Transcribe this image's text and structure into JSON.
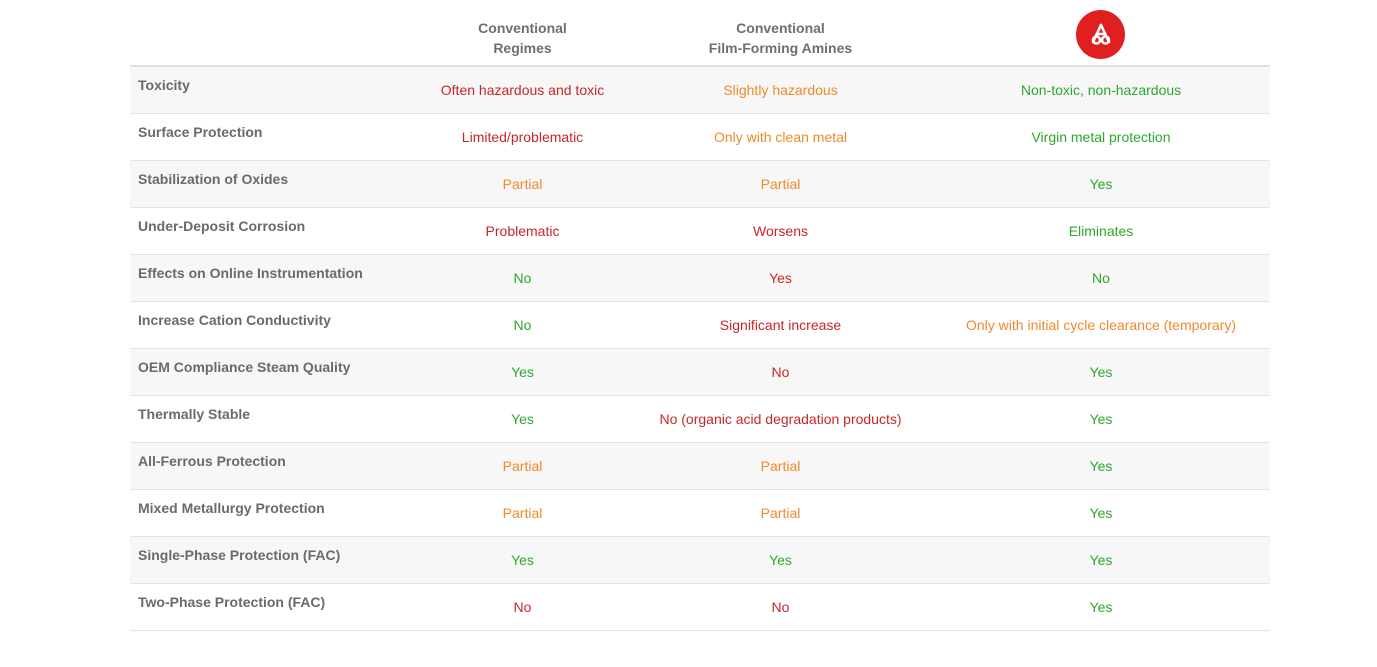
{
  "header": {
    "col1": "Conventional\nRegimes",
    "col2": "Conventional\nFilm-Forming Amines",
    "col3_logo": "brand-logo-icon"
  },
  "colors": {
    "bad": "#c62828",
    "medium": "#ef8a2b",
    "good": "#2ca82c",
    "brand": "#e02020"
  },
  "rows": [
    {
      "label": "Toxicity",
      "conv": {
        "text": "Often hazardous and toxic",
        "level": "bad"
      },
      "ffa": {
        "text": "Slightly hazardous",
        "level": "medium"
      },
      "brand": {
        "text": "Non-toxic, non-hazardous",
        "level": "good"
      }
    },
    {
      "label": "Surface Protection",
      "conv": {
        "text": "Limited/problematic",
        "level": "bad"
      },
      "ffa": {
        "text": "Only with clean metal",
        "level": "medium"
      },
      "brand": {
        "text": "Virgin metal protection",
        "level": "good"
      }
    },
    {
      "label": "Stabilization of Oxides",
      "conv": {
        "text": "Partial",
        "level": "medium"
      },
      "ffa": {
        "text": "Partial",
        "level": "medium"
      },
      "brand": {
        "text": "Yes",
        "level": "good"
      }
    },
    {
      "label": "Under-Deposit Corrosion",
      "conv": {
        "text": "Problematic",
        "level": "bad"
      },
      "ffa": {
        "text": "Worsens",
        "level": "bad"
      },
      "brand": {
        "text": "Eliminates",
        "level": "good"
      }
    },
    {
      "label": "Effects on Online Instrumentation",
      "conv": {
        "text": "No",
        "level": "good"
      },
      "ffa": {
        "text": "Yes",
        "level": "bad"
      },
      "brand": {
        "text": "No",
        "level": "good"
      }
    },
    {
      "label": "Increase Cation Conductivity",
      "conv": {
        "text": "No",
        "level": "good"
      },
      "ffa": {
        "text": "Significant increase",
        "level": "bad"
      },
      "brand": {
        "text": "Only with initial cycle clearance (temporary)",
        "level": "medium"
      }
    },
    {
      "label": "OEM Compliance Steam Quality",
      "conv": {
        "text": "Yes",
        "level": "good"
      },
      "ffa": {
        "text": "No",
        "level": "bad"
      },
      "brand": {
        "text": "Yes",
        "level": "good"
      }
    },
    {
      "label": "Thermally Stable",
      "conv": {
        "text": "Yes",
        "level": "good"
      },
      "ffa": {
        "text": "No (organic acid degradation products)",
        "level": "bad"
      },
      "brand": {
        "text": "Yes",
        "level": "good"
      }
    },
    {
      "label": "All-Ferrous Protection",
      "conv": {
        "text": "Partial",
        "level": "medium"
      },
      "ffa": {
        "text": "Partial",
        "level": "medium"
      },
      "brand": {
        "text": "Yes",
        "level": "good"
      }
    },
    {
      "label": "Mixed Metallurgy Protection",
      "conv": {
        "text": "Partial",
        "level": "medium"
      },
      "ffa": {
        "text": "Partial",
        "level": "medium"
      },
      "brand": {
        "text": "Yes",
        "level": "good"
      }
    },
    {
      "label": "Single-Phase Protection (FAC)",
      "conv": {
        "text": "Yes",
        "level": "good"
      },
      "ffa": {
        "text": "Yes",
        "level": "good"
      },
      "brand": {
        "text": "Yes",
        "level": "good"
      }
    },
    {
      "label": "Two-Phase Protection (FAC)",
      "conv": {
        "text": "No",
        "level": "bad"
      },
      "ffa": {
        "text": "No",
        "level": "bad"
      },
      "brand": {
        "text": "Yes",
        "level": "good"
      }
    }
  ]
}
